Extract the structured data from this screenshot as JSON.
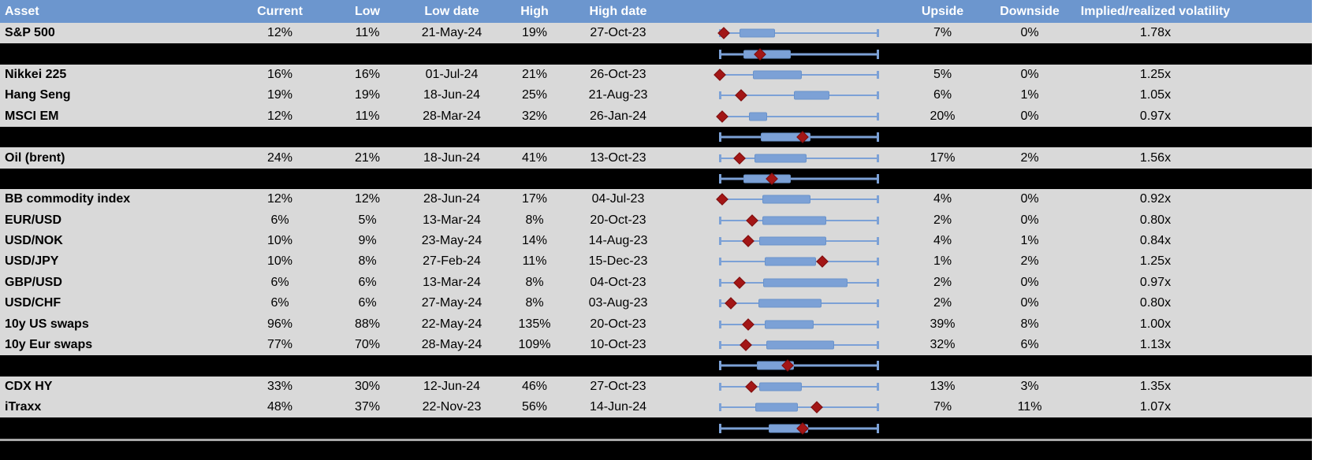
{
  "colors": {
    "header_bg": "#6C96CE",
    "row_bg": "#D9D9D9",
    "separator_bg": "#000000",
    "box_fill": "#7CA1D6",
    "box_border": "#6A93CB",
    "whisker": "#7CA1D6",
    "diamond": "#A31616",
    "footer_line": "#A8A8A8"
  },
  "chart_data": {
    "type": "table",
    "description": "Implied volatility table: current/low/high vol levels per asset with horizontal box-whisker plots; red diamond marks current level within the low-high range",
    "boxplot_units": "fractions of whisker span (0 = left whisker end, 1 = right whisker end); bl/br = box left/right, d = diamond (current marker) position",
    "columns": [
      {
        "key": "asset",
        "label": "Asset"
      },
      {
        "key": "current",
        "label": "Current"
      },
      {
        "key": "low",
        "label": "Low"
      },
      {
        "key": "low_date",
        "label": "Low date"
      },
      {
        "key": "high",
        "label": "High"
      },
      {
        "key": "high_date",
        "label": "High date"
      },
      {
        "key": "chart",
        "label": ""
      },
      {
        "key": "upside",
        "label": "Upside"
      },
      {
        "key": "downside",
        "label": "Downside"
      },
      {
        "key": "impl_real",
        "label": "Implied/realized volatility"
      }
    ],
    "rows": [
      {
        "type": "data",
        "asset": "S&P 500",
        "current": "12%",
        "low": "11%",
        "low_date": "21-May-24",
        "high": "19%",
        "high_date": "27-Oct-23",
        "upside": "7%",
        "downside": "0%",
        "impl_real": "1.78x",
        "box": {
          "bl": 0.125,
          "br": 0.35,
          "d": 0.025
        }
      },
      {
        "type": "separator",
        "box": {
          "bl": 0.15,
          "br": 0.45,
          "d": 0.255
        }
      },
      {
        "type": "data",
        "asset": "Nikkei 225",
        "current": "16%",
        "low": "16%",
        "low_date": "01-Jul-24",
        "high": "21%",
        "high_date": "26-Oct-23",
        "upside": "5%",
        "downside": "0%",
        "impl_real": "1.25x",
        "box": {
          "bl": 0.21,
          "br": 0.52,
          "d": 0.0
        }
      },
      {
        "type": "data",
        "asset": "Hang Seng",
        "current": "19%",
        "low": "19%",
        "low_date": "18-Jun-24",
        "high": "25%",
        "high_date": "21-Aug-23",
        "upside": "6%",
        "downside": "1%",
        "impl_real": "1.05x",
        "box": {
          "bl": 0.47,
          "br": 0.695,
          "d": 0.135
        }
      },
      {
        "type": "data",
        "asset": "MSCI EM",
        "current": "12%",
        "low": "11%",
        "low_date": "28-Mar-24",
        "high": "32%",
        "high_date": "26-Jan-24",
        "upside": "20%",
        "downside": "0%",
        "impl_real": "0.97x",
        "box": {
          "bl": 0.185,
          "br": 0.3,
          "d": 0.015
        }
      },
      {
        "type": "separator",
        "box": {
          "bl": 0.26,
          "br": 0.575,
          "d": 0.525
        }
      },
      {
        "type": "data",
        "asset": "Oil (brent)",
        "current": "24%",
        "low": "21%",
        "low_date": "18-Jun-24",
        "high": "41%",
        "high_date": "13-Oct-23",
        "upside": "17%",
        "downside": "2%",
        "impl_real": "1.56x",
        "box": {
          "bl": 0.22,
          "br": 0.55,
          "d": 0.125
        }
      },
      {
        "type": "separator",
        "box": {
          "bl": 0.15,
          "br": 0.45,
          "d": 0.33
        }
      },
      {
        "type": "data",
        "asset": "BB commodity index",
        "current": "12%",
        "low": "12%",
        "low_date": "28-Jun-24",
        "high": "17%",
        "high_date": "04-Jul-23",
        "upside": "4%",
        "downside": "0%",
        "impl_real": "0.92x",
        "box": {
          "bl": 0.27,
          "br": 0.575,
          "d": 0.015
        }
      },
      {
        "type": "data",
        "asset": "EUR/USD",
        "current": "6%",
        "low": "5%",
        "low_date": "13-Mar-24",
        "high": "8%",
        "high_date": "20-Oct-23",
        "upside": "2%",
        "downside": "0%",
        "impl_real": "0.80x",
        "box": {
          "bl": 0.27,
          "br": 0.675,
          "d": 0.205
        }
      },
      {
        "type": "data",
        "asset": "USD/NOK",
        "current": "10%",
        "low": "9%",
        "low_date": "23-May-24",
        "high": "14%",
        "high_date": "14-Aug-23",
        "upside": "4%",
        "downside": "1%",
        "impl_real": "0.84x",
        "box": {
          "bl": 0.25,
          "br": 0.675,
          "d": 0.18
        }
      },
      {
        "type": "data",
        "asset": "USD/JPY",
        "current": "10%",
        "low": "8%",
        "low_date": "27-Feb-24",
        "high": "11%",
        "high_date": "15-Dec-23",
        "upside": "1%",
        "downside": "2%",
        "impl_real": "1.25x",
        "box": {
          "bl": 0.285,
          "br": 0.61,
          "d": 0.65
        }
      },
      {
        "type": "data",
        "asset": "GBP/USD",
        "current": "6%",
        "low": "6%",
        "low_date": "13-Mar-24",
        "high": "8%",
        "high_date": "04-Oct-23",
        "upside": "2%",
        "downside": "0%",
        "impl_real": "0.97x",
        "box": {
          "bl": 0.275,
          "br": 0.81,
          "d": 0.125
        }
      },
      {
        "type": "data",
        "asset": "USD/CHF",
        "current": "6%",
        "low": "6%",
        "low_date": "27-May-24",
        "high": "8%",
        "high_date": "03-Aug-23",
        "upside": "2%",
        "downside": "0%",
        "impl_real": "0.80x",
        "box": {
          "bl": 0.245,
          "br": 0.645,
          "d": 0.07
        }
      },
      {
        "type": "data",
        "asset": "10y US swaps",
        "current": "96%",
        "low": "88%",
        "low_date": "22-May-24",
        "high": "135%",
        "high_date": "20-Oct-23",
        "upside": "39%",
        "downside": "8%",
        "impl_real": "1.00x",
        "box": {
          "bl": 0.285,
          "br": 0.595,
          "d": 0.18
        }
      },
      {
        "type": "data",
        "asset": "10y Eur swaps",
        "current": "77%",
        "low": "70%",
        "low_date": "28-May-24",
        "high": "109%",
        "high_date": "10-Oct-23",
        "upside": "32%",
        "downside": "6%",
        "impl_real": "1.13x",
        "box": {
          "bl": 0.295,
          "br": 0.725,
          "d": 0.165
        }
      },
      {
        "type": "separator",
        "box": {
          "bl": 0.235,
          "br": 0.47,
          "d": 0.43
        }
      },
      {
        "type": "data",
        "asset": "CDX HY",
        "current": "33%",
        "low": "30%",
        "low_date": "12-Jun-24",
        "high": "46%",
        "high_date": "27-Oct-23",
        "upside": "13%",
        "downside": "3%",
        "impl_real": "1.35x",
        "box": {
          "bl": 0.25,
          "br": 0.52,
          "d": 0.2
        }
      },
      {
        "type": "data",
        "asset": "iTraxx",
        "current": "48%",
        "low": "37%",
        "low_date": "22-Nov-23",
        "high": "56%",
        "high_date": "14-Jun-24",
        "upside": "7%",
        "downside": "11%",
        "impl_real": "1.07x",
        "box": {
          "bl": 0.225,
          "br": 0.495,
          "d": 0.615
        }
      },
      {
        "type": "separator",
        "box": {
          "bl": 0.31,
          "br": 0.56,
          "d": 0.525
        }
      }
    ]
  }
}
